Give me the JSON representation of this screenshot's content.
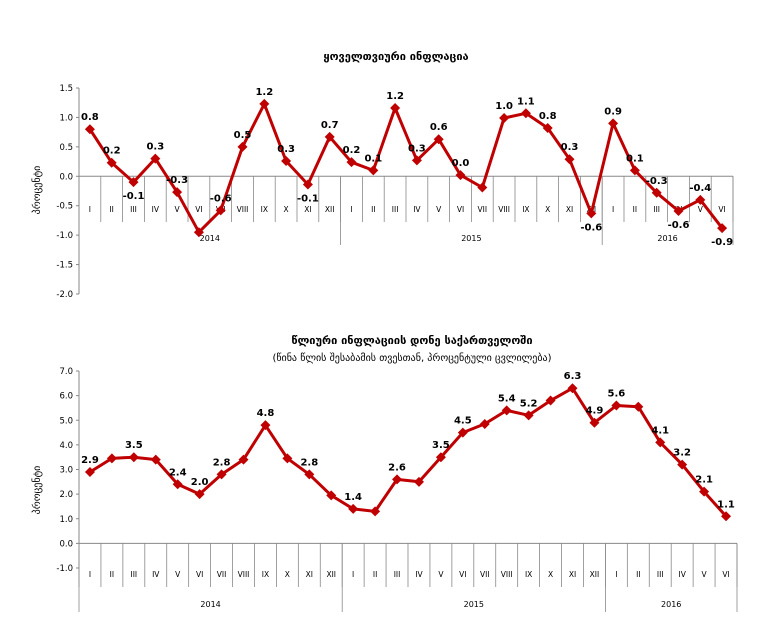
{
  "chart_data": [
    {
      "type": "line",
      "title": "ყოველთვიური ინფლაცია",
      "subtitle": "",
      "ylabel": "პროცენტი",
      "xlabel": "",
      "ylim": [
        -2.0,
        1.5
      ],
      "ytick_labels": [
        "1.5",
        "1.0",
        "0.5",
        "0.0",
        "-0.5",
        "-1.0",
        "-1.5",
        "-2.0"
      ],
      "categories": [
        "I",
        "II",
        "III",
        "IV",
        "V",
        "VI",
        "VII",
        "VIII",
        "IX",
        "X",
        "XI",
        "XII",
        "I",
        "II",
        "III",
        "IV",
        "V",
        "VI",
        "VII",
        "VIII",
        "IX",
        "X",
        "XI",
        "XII",
        "I",
        "II",
        "III",
        "IV",
        "V",
        "VI"
      ],
      "years": [
        {
          "label": "2014",
          "count": 12
        },
        {
          "label": "2015",
          "count": 12
        },
        {
          "label": "2016",
          "count": 6
        }
      ],
      "values": [
        0.8,
        0.23,
        -0.1,
        0.3,
        -0.27,
        -0.95,
        -0.58,
        0.5,
        1.23,
        0.26,
        -0.14,
        0.67,
        0.24,
        0.1,
        1.16,
        0.27,
        0.63,
        0.02,
        -0.19,
        0.99,
        1.07,
        0.82,
        0.29,
        -0.63,
        0.9,
        0.1,
        -0.28,
        -0.59,
        -0.4,
        -0.88
      ],
      "data_labels": [
        "0.8",
        "0.2",
        "-0.1",
        "0.3",
        "-0.3",
        "",
        "-0.6",
        "0.5",
        "1.2",
        "0.3",
        "-0.1",
        "0.7",
        "0.2",
        "0.1",
        "1.2",
        "0.3",
        "0.6",
        "0.0",
        "",
        "1.0",
        "1.1",
        "0.8",
        "0.3",
        "-0.6",
        "0.9",
        "0.1",
        "-0.3",
        "-0.6",
        "-0.4",
        "-0.9"
      ],
      "line_color": "#C00000"
    },
    {
      "type": "line",
      "title": "წლიური ინფლაციის დონე საქართველოში",
      "subtitle": "(წინა წლის შესაბამის თვესთან, პროცენტული ცვლილება)",
      "ylabel": "პროცენტი",
      "xlabel": "",
      "ylim": [
        -1.0,
        7.0
      ],
      "ytick_labels": [
        "7.0",
        "6.0",
        "5.0",
        "4.0",
        "3.0",
        "2.0",
        "1.0",
        "0.0",
        "-1.0"
      ],
      "categories": [
        "I",
        "II",
        "III",
        "IV",
        "V",
        "VI",
        "VII",
        "VIII",
        "IX",
        "X",
        "XI",
        "XII",
        "I",
        "II",
        "III",
        "IV",
        "V",
        "VI",
        "VII",
        "VIII",
        "IX",
        "X",
        "XI",
        "XII",
        "I",
        "II",
        "III",
        "IV",
        "V",
        "VI"
      ],
      "years": [
        {
          "label": "2014",
          "count": 12
        },
        {
          "label": "2015",
          "count": 12
        },
        {
          "label": "2016",
          "count": 6
        }
      ],
      "values": [
        2.9,
        3.45,
        3.5,
        3.4,
        2.4,
        2.0,
        2.8,
        3.4,
        4.8,
        3.45,
        2.8,
        1.95,
        1.4,
        1.3,
        2.6,
        2.5,
        3.5,
        4.5,
        4.85,
        5.4,
        5.2,
        5.8,
        6.3,
        4.9,
        5.6,
        5.55,
        4.1,
        3.2,
        2.1,
        1.1
      ],
      "data_labels": [
        "2.9",
        "",
        "3.5",
        "",
        "2.4",
        "2.0",
        "2.8",
        "",
        "4.8",
        "",
        "2.8",
        "",
        "1.4",
        "",
        "2.6",
        "",
        "3.5",
        "4.5",
        "",
        "5.4",
        "5.2",
        "",
        "6.3",
        "4.9",
        "5.6",
        "",
        "4.1",
        "3.2",
        "2.1",
        "1.1"
      ],
      "line_color": "#C00000"
    }
  ]
}
